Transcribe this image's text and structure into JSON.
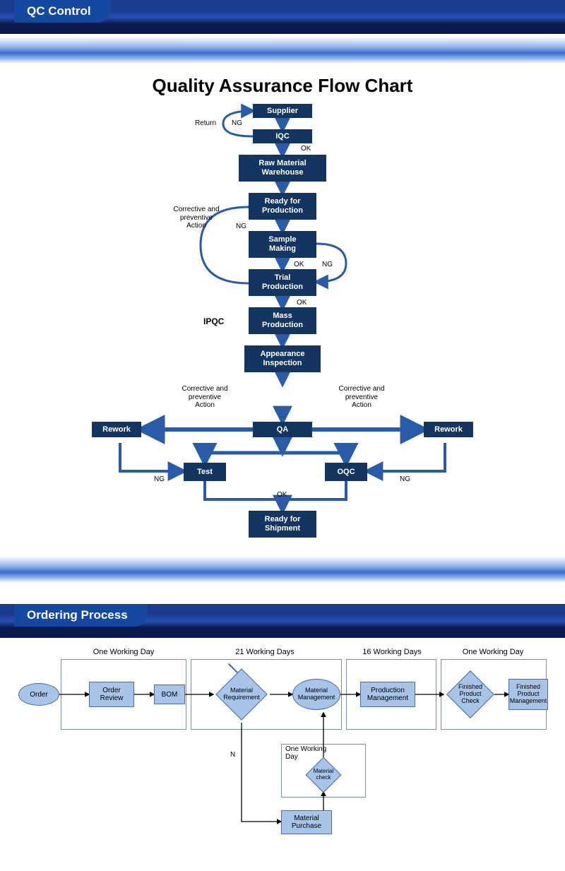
{
  "sections": {
    "qc_header": "QC Control",
    "order_header": "Ordering Process"
  },
  "qa_chart": {
    "title": "Quality Assurance Flow Chart",
    "node_bg": "#14355f",
    "node_fg": "#ffffff",
    "arrow_color": "#2a5ba8",
    "nodes": {
      "supplier": "Supplier",
      "iqc": "IQC",
      "raw_wh": "Raw Material\nWarehouse",
      "ready_prod": "Ready for\nProduction",
      "sample": "Sample\nMaking",
      "trial": "Trial\nProduction",
      "mass": "Mass\nProduction",
      "appearance": "Appearance\nInspection",
      "qa": "QA",
      "rework_l": "Rework",
      "rework_r": "Rework",
      "test": "Test",
      "oqc": "OQC",
      "ship": "Ready for\nShipment"
    },
    "labels": {
      "return": "Return",
      "ng": "NG",
      "ok": "OK",
      "corrective": "Corrective and\npreventive\nAction",
      "ipqc": "IPQC"
    }
  },
  "ordering": {
    "phases": {
      "p1": "One Working Day",
      "p2": "21 Working Days",
      "p3": "16 Working Days",
      "p4": "One Working Day",
      "p5": "One Working\nDay"
    },
    "nodes": {
      "order": "Order",
      "review": "Order\nReview",
      "bom": "BOM",
      "matreq": "Material\nRequirement",
      "matmgmt": "Material\nManagement",
      "prodmgmt": "Production\nManagement",
      "fpcheck": "Finished\nProduct\nCheck",
      "fpmgmt": "Finished\nProduct\nManagement",
      "matcheck": "Material\ncheck",
      "matpurch": "Material\nPurchase"
    },
    "labels": {
      "n": "N"
    },
    "colors": {
      "shape_bg": "#a8c4e8",
      "shape_border": "#4a6aa0",
      "arrow": "#000000"
    }
  }
}
